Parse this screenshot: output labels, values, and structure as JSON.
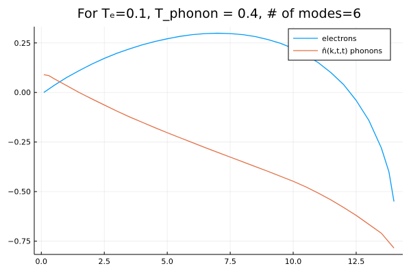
{
  "chart_data": {
    "type": "line",
    "title": "For Tₑ=0.1, T_phonon = 0.4, # of modes=6",
    "xlabel": "",
    "ylabel": "",
    "xlim": [
      -0.28,
      14.35
    ],
    "ylim": [
      -0.817,
      0.332
    ],
    "grid": true,
    "legend_position": "top-right",
    "x_ticks": [
      {
        "value": 0.0,
        "label": "0.0"
      },
      {
        "value": 2.5,
        "label": "2.5"
      },
      {
        "value": 5.0,
        "label": "5.0"
      },
      {
        "value": 7.5,
        "label": "7.5"
      },
      {
        "value": 10.0,
        "label": "10.0"
      },
      {
        "value": 12.5,
        "label": "12.5"
      }
    ],
    "y_ticks": [
      {
        "value": 0.25,
        "label": "0.25"
      },
      {
        "value": 0.0,
        "label": "0.00"
      },
      {
        "value": -0.25,
        "label": "−0.25"
      },
      {
        "value": -0.5,
        "label": "−0.50"
      },
      {
        "value": -0.75,
        "label": "−0.75"
      }
    ],
    "series": [
      {
        "name": "electrons",
        "color": "#009af9",
        "points": [
          [
            0.1,
            0.0
          ],
          [
            0.5,
            0.035
          ],
          [
            1.0,
            0.075
          ],
          [
            1.5,
            0.11
          ],
          [
            2.0,
            0.143
          ],
          [
            2.5,
            0.172
          ],
          [
            3.0,
            0.198
          ],
          [
            3.5,
            0.22
          ],
          [
            4.0,
            0.24
          ],
          [
            4.5,
            0.257
          ],
          [
            5.0,
            0.271
          ],
          [
            5.5,
            0.283
          ],
          [
            6.0,
            0.292
          ],
          [
            6.5,
            0.297
          ],
          [
            7.0,
            0.299
          ],
          [
            7.5,
            0.297
          ],
          [
            8.0,
            0.292
          ],
          [
            8.5,
            0.282
          ],
          [
            9.0,
            0.267
          ],
          [
            9.5,
            0.248
          ],
          [
            10.0,
            0.222
          ],
          [
            10.5,
            0.19
          ],
          [
            11.0,
            0.15
          ],
          [
            11.5,
            0.1
          ],
          [
            12.0,
            0.04
          ],
          [
            12.5,
            -0.04
          ],
          [
            13.0,
            -0.14
          ],
          [
            13.5,
            -0.28
          ],
          [
            13.8,
            -0.4
          ],
          [
            14.0,
            -0.55
          ]
        ]
      },
      {
        "name": "n̂(k,t,t) phonons",
        "color": "#e26f46",
        "points": [
          [
            0.1,
            0.09
          ],
          [
            0.3,
            0.085
          ],
          [
            0.5,
            0.07
          ],
          [
            1.0,
            0.035
          ],
          [
            1.5,
            0.0
          ],
          [
            2.0,
            -0.032
          ],
          [
            2.5,
            -0.063
          ],
          [
            3.0,
            -0.094
          ],
          [
            3.5,
            -0.123
          ],
          [
            4.0,
            -0.15
          ],
          [
            4.5,
            -0.177
          ],
          [
            5.0,
            -0.203
          ],
          [
            5.5,
            -0.228
          ],
          [
            6.0,
            -0.253
          ],
          [
            6.5,
            -0.278
          ],
          [
            7.0,
            -0.302
          ],
          [
            7.5,
            -0.326
          ],
          [
            8.0,
            -0.35
          ],
          [
            8.5,
            -0.374
          ],
          [
            9.0,
            -0.398
          ],
          [
            9.5,
            -0.423
          ],
          [
            10.0,
            -0.448
          ],
          [
            10.5,
            -0.476
          ],
          [
            11.0,
            -0.508
          ],
          [
            11.5,
            -0.542
          ],
          [
            12.0,
            -0.58
          ],
          [
            12.5,
            -0.62
          ],
          [
            13.0,
            -0.665
          ],
          [
            13.5,
            -0.71
          ],
          [
            14.0,
            -0.785
          ]
        ]
      }
    ]
  }
}
